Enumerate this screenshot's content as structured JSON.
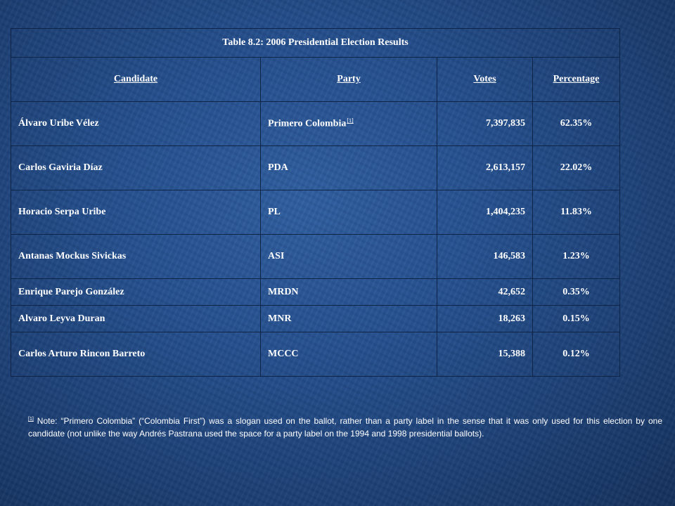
{
  "table": {
    "title": "Table 8.2:  2006 Presidential Election Results",
    "headers": {
      "candidate": "Candidate",
      "party": "Party",
      "votes": "Votes",
      "percentage": "Percentage"
    },
    "rows": [
      {
        "candidate": "Álvaro Uribe Vélez",
        "party": "Primero Colombia",
        "footnote_marker": "[1]",
        "votes": "7,397,835",
        "percentage": "62.35%"
      },
      {
        "candidate": "Carlos Gaviria Díaz",
        "party": "PDA",
        "votes": "2,613,157",
        "percentage": "22.02%"
      },
      {
        "candidate": "Horacio Serpa Uribe",
        "party": "PL",
        "votes": "1,404,235",
        "percentage": "11.83%"
      },
      {
        "candidate": "Antanas Mockus Sivickas",
        "party": "ASI",
        "votes": "146,583",
        "percentage": "1.23%"
      },
      {
        "candidate": "Enrique Parejo González",
        "party": "MRDN",
        "votes": "42,652",
        "percentage": "0.35%"
      },
      {
        "candidate": "Alvaro Leyva Duran",
        "party": "MNR",
        "votes": "18,263",
        "percentage": "0.15%"
      },
      {
        "candidate": "Carlos Arturo Rincon Barreto",
        "party": "MCCC",
        "votes": "15,388",
        "percentage": "0.12%"
      }
    ]
  },
  "footnote": {
    "marker": "[1]",
    "text": " Note:  “Primero Colombia” (“Colombia First”) was a slogan used on the ballot, rather than a party label in the sense that it was only used for this election by one candidate (not unlike the way Andrés Pastrana used the space for a party label on the 1994 and 1998 presidential ballots)."
  },
  "colors": {
    "background": "#25508f",
    "grid_lines": "#0f2548",
    "text": "#ffffff"
  }
}
